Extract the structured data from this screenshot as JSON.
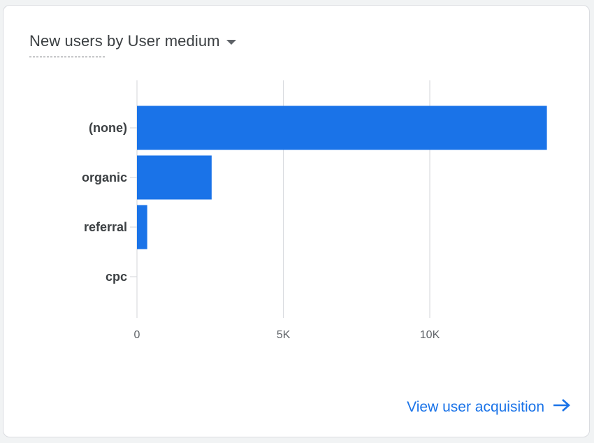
{
  "card": {
    "title": "New users by User medium",
    "title_icon": "caret-down-icon",
    "link_label": "View user acquisition",
    "link_icon": "arrow-right-icon"
  },
  "colors": {
    "bar": "#1a73e8",
    "gridline": "#dadce0",
    "link": "#1a73e8"
  },
  "chart_data": {
    "type": "bar",
    "orientation": "horizontal",
    "title": "New users by User medium",
    "categories": [
      "(none)",
      "organic",
      "referral",
      "cpc"
    ],
    "values": [
      14000,
      2550,
      350,
      0
    ],
    "xticks": [
      0,
      5000,
      10000
    ],
    "xtick_labels": [
      "0",
      "5K",
      "10K"
    ],
    "xlim": [
      0,
      14000
    ],
    "grid": true,
    "legend": "none"
  }
}
